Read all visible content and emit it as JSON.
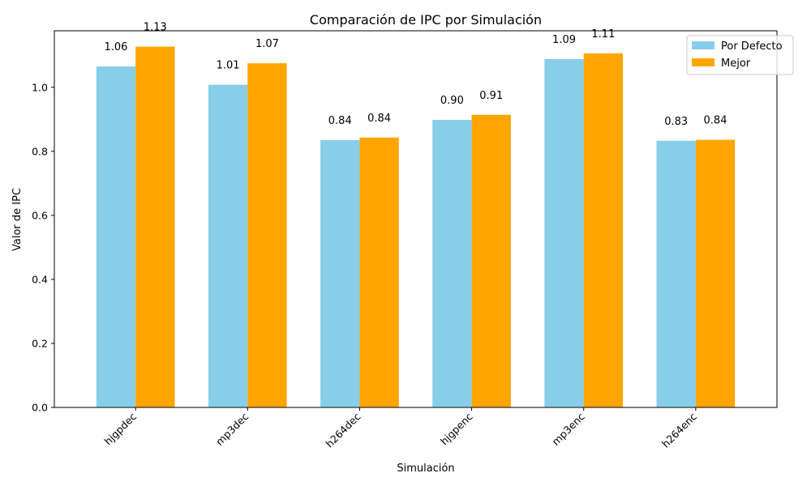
{
  "chart_data": {
    "type": "bar",
    "title": "Comparación de IPC por Simulación",
    "xlabel": "Simulación",
    "ylabel": "Valor de IPC",
    "categories": [
      "hjgpdec",
      "mp3dec",
      "h264dec",
      "hjgpenc",
      "mp3enc",
      "h264enc"
    ],
    "series": [
      {
        "name": "Por Defecto",
        "color": "#87CEEB",
        "values": [
          1.065,
          1.008,
          0.835,
          0.898,
          1.088,
          0.833
        ],
        "labels": [
          "1.06",
          "1.01",
          "0.84",
          "0.90",
          "1.09",
          "0.83"
        ]
      },
      {
        "name": "Mejor",
        "color": "#FFA500",
        "values": [
          1.127,
          1.075,
          0.843,
          0.914,
          1.106,
          0.836
        ],
        "labels": [
          "1.13",
          "1.07",
          "0.84",
          "0.91",
          "1.11",
          "0.84"
        ]
      }
    ],
    "ylim": [
      0,
      1.1765
    ],
    "yticks": [
      0.0,
      0.2,
      0.4,
      0.6,
      0.8,
      1.0
    ],
    "ytick_labels": [
      "0.0",
      "0.2",
      "0.4",
      "0.6",
      "0.8",
      "1.0"
    ],
    "grid": false,
    "legend_position": "top-right",
    "xtick_rotation": 45
  }
}
